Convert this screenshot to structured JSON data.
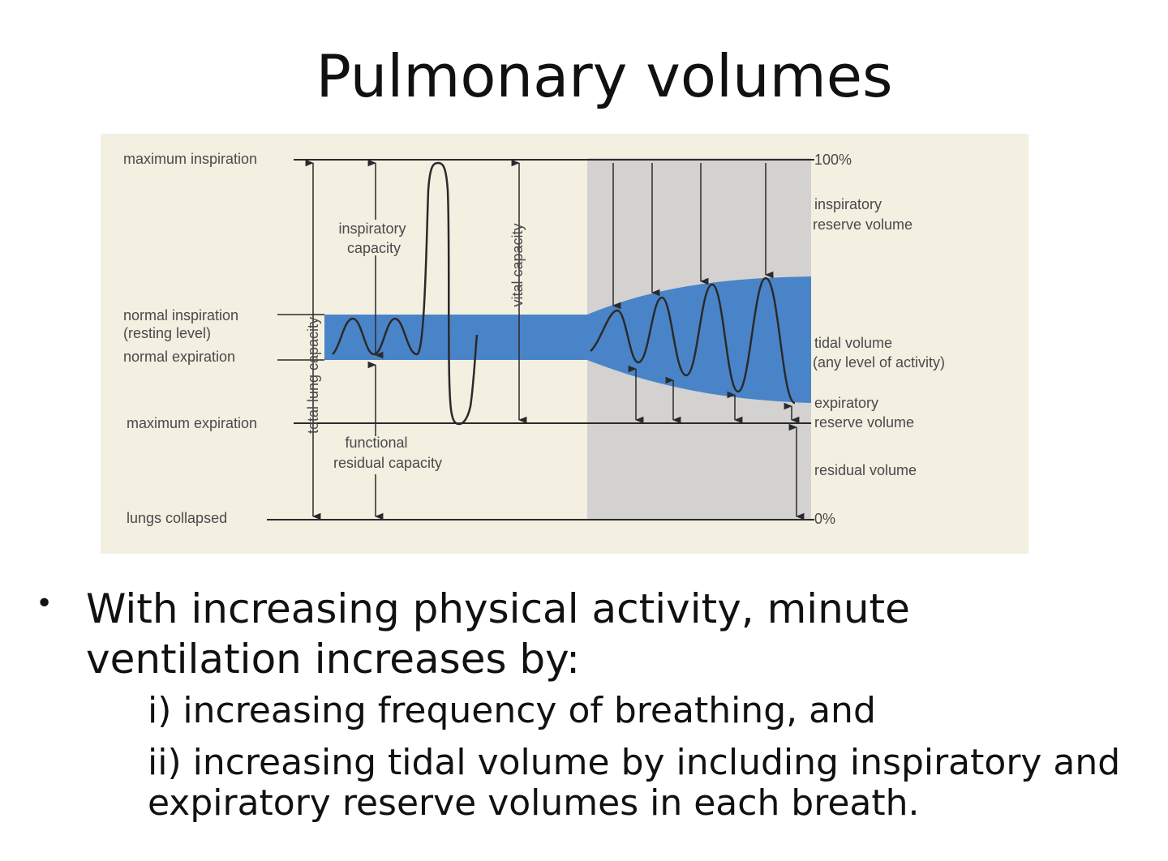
{
  "title": "Pulmonary volumes",
  "diagram": {
    "left_labels": {
      "max_insp": "maximum inspiration",
      "normal_insp": "normal inspiration",
      "resting": "(resting level)",
      "normal_exp": "normal expiration",
      "max_exp": "maximum expiration",
      "collapsed": "lungs collapsed"
    },
    "inner_labels": {
      "insp_cap_1": "inspiratory",
      "insp_cap_2": "capacity",
      "vital_cap": "vital capacity",
      "tlc": "total lung capacity",
      "frc_1": "functional",
      "frc_2": "residual capacity"
    },
    "right_labels": {
      "pct100": "100%",
      "irv_1": "inspiratory",
      "irv_2": "reserve volume",
      "tv_1": "tidal volume",
      "tv_2": "(any level of activity)",
      "erv_1": "expiratory",
      "erv_2": "reserve volume",
      "rv": "residual volume",
      "pct0": "0%"
    },
    "colors": {
      "band": "#4a84c8",
      "shade": "#d3d2d0",
      "background": "#f3efe1",
      "line": "#2a2a2a"
    }
  },
  "bullet": {
    "main": "With increasing physical activity, minute ventilation increases by:",
    "sub1": "i) increasing frequency of breathing, and",
    "sub2": "ii) increasing tidal volume by including inspiratory and expiratory reserve volumes in each breath."
  }
}
